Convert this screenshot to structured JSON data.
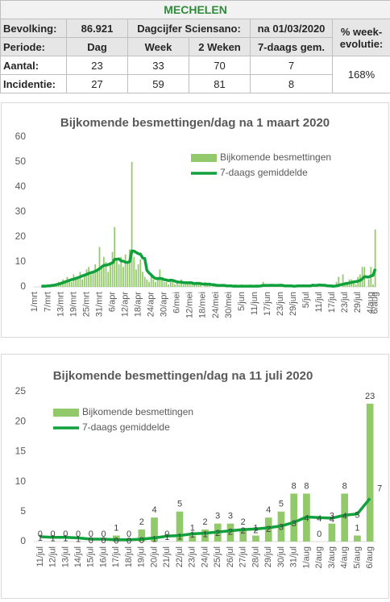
{
  "table": {
    "title": "MECHELEN",
    "rows": [
      [
        "Bevolking:",
        "86.921",
        "Dagcijfer Sciensano:",
        "na 01/03/2020",
        "% week-evolutie:"
      ],
      [
        "Periode:",
        "Dag",
        "Week",
        "2 Weken",
        "7-daags gem."
      ],
      [
        "Aantal:",
        "23",
        "33",
        "70",
        "7",
        "168%"
      ],
      [
        "Incidentie:",
        "27",
        "59",
        "81",
        "8"
      ]
    ]
  },
  "chart_data": [
    {
      "type": "bar",
      "title": "Bijkomende besmettingen/dag  na 1 maart 2020",
      "categories": [
        "1/mrt",
        null,
        null,
        null,
        null,
        null,
        "7/mrt",
        null,
        null,
        null,
        null,
        null,
        "13/mrt",
        null,
        null,
        null,
        null,
        null,
        "19/mrt",
        null,
        null,
        null,
        null,
        null,
        "25/mrt",
        null,
        null,
        null,
        null,
        null,
        "31/mrt",
        null,
        null,
        null,
        null,
        null,
        "6/apr",
        null,
        null,
        null,
        null,
        null,
        "12/apr",
        null,
        null,
        null,
        null,
        null,
        "18/apr",
        null,
        null,
        null,
        null,
        null,
        "24/apr",
        null,
        null,
        null,
        null,
        null,
        "30/apr",
        null,
        null,
        null,
        null,
        null,
        "6/mei",
        null,
        null,
        null,
        null,
        null,
        "12/mei",
        null,
        null,
        null,
        null,
        null,
        "18/mei",
        null,
        null,
        null,
        null,
        null,
        "24/mei",
        null,
        null,
        null,
        null,
        null,
        "30/mei",
        null,
        null,
        null,
        null,
        null,
        "5/jun",
        null,
        null,
        null,
        null,
        null,
        "11/jun",
        null,
        null,
        null,
        null,
        null,
        "17/jun",
        null,
        null,
        null,
        null,
        null,
        "23/jun",
        null,
        null,
        null,
        null,
        null,
        "29/jun",
        null,
        null,
        null,
        null,
        null,
        "5/jul",
        null,
        null,
        null,
        null,
        null,
        "11/jul",
        null,
        null,
        null,
        null,
        null,
        "17/jul",
        null,
        null,
        null,
        null,
        null,
        "23/jul",
        null,
        null,
        null,
        null,
        null,
        "29/jul",
        null,
        null,
        null,
        null,
        null,
        "4/aug",
        null,
        "6/aug"
      ],
      "series": [
        {
          "name": "Bijkomende besmettingen",
          "type": "bar",
          "color": "#92c96a",
          "values": [
            0,
            0,
            0,
            0,
            1,
            0,
            0,
            1,
            0,
            1,
            1,
            2,
            1,
            3,
            2,
            4,
            3,
            2,
            5,
            3,
            4,
            6,
            3,
            5,
            7,
            8,
            5,
            6,
            9,
            7,
            16,
            8,
            12,
            10,
            6,
            9,
            14,
            24,
            11,
            9,
            12,
            8,
            13,
            10,
            15,
            50,
            12,
            7,
            9,
            11,
            6,
            4,
            3,
            2,
            5,
            3,
            2,
            4,
            7,
            3,
            2,
            2,
            1,
            3,
            2,
            1,
            2,
            1,
            3,
            1,
            2,
            1,
            2,
            1,
            1,
            2,
            1,
            1,
            0,
            2,
            1,
            1,
            0,
            1,
            1,
            0,
            1,
            0,
            1,
            0,
            0,
            1,
            0,
            1,
            0,
            0,
            1,
            0,
            0,
            0,
            1,
            0,
            0,
            1,
            0,
            0,
            2,
            1,
            0,
            0,
            1,
            0,
            0,
            0,
            1,
            0,
            0,
            1,
            0,
            1,
            0,
            0,
            1,
            0,
            0,
            1,
            0,
            1,
            0,
            1,
            0,
            0,
            0,
            0,
            0,
            0,
            0,
            0,
            1,
            0,
            2,
            4,
            0,
            5,
            1,
            2,
            3,
            3,
            2,
            1,
            4,
            5,
            8,
            8,
            0,
            3,
            8,
            1,
            23
          ]
        },
        {
          "name": "7-daags gemiddelde",
          "type": "line",
          "color": "#10a03c",
          "values": [
            null,
            null,
            null,
            0.2,
            0.3,
            0.3,
            0.4,
            0.4,
            0.6,
            0.7,
            0.9,
            1.1,
            1.4,
            1.7,
            2.0,
            2.3,
            2.6,
            2.9,
            3.1,
            3.4,
            3.7,
            4.0,
            4.4,
            4.7,
            5.0,
            5.4,
            5.7,
            5.9,
            6.3,
            6.7,
            7.3,
            8.0,
            8.6,
            8.7,
            8.9,
            9.3,
            9.6,
            11,
            11.1,
            11.2,
            10.4,
            10.3,
            9.9,
            9.8,
            10.1,
            14.4,
            14.3,
            13.8,
            13.3,
            13.1,
            11.6,
            11.4,
            6.6,
            5.6,
            4.8,
            3.9,
            3.4,
            3.3,
            3.4,
            3.3,
            2.9,
            2.8,
            2.5,
            2.7,
            2.6,
            2.3,
            2,
            1.9,
            1.9,
            1.7,
            1.7,
            1.6,
            1.7,
            1.6,
            1.3,
            1.4,
            1.4,
            1.3,
            1.1,
            1.1,
            1.1,
            1.1,
            0.9,
            0.9,
            0.7,
            0.6,
            0.6,
            0.6,
            0.6,
            0.4,
            0.4,
            0.4,
            0.3,
            0.3,
            0.3,
            0.3,
            0.3,
            0.3,
            0.3,
            0.3,
            0.3,
            0.3,
            0.3,
            0.3,
            0.3,
            0.4,
            0.6,
            0.6,
            0.6,
            0.6,
            0.7,
            0.6,
            0.6,
            0.6,
            0.7,
            0.6,
            0.4,
            0.4,
            0.4,
            0.4,
            0.3,
            0.3,
            0.4,
            0.4,
            0.4,
            0.4,
            0.4,
            0.4,
            0.4,
            0.7,
            0.6,
            0.6,
            0.8,
            0.7,
            0.7,
            0.6,
            0.4,
            0.4,
            0.3,
            0.3,
            0.4,
            0.6,
            0.9,
            1.0,
            1.3,
            1.4,
            1.6,
            1.8,
            2.0,
            2.1,
            2.3,
            2.6,
            3.2,
            4.1,
            4.0,
            3.9,
            4.4,
            4.6,
            7.2
          ]
        }
      ],
      "ylim": [
        0,
        60
      ],
      "yticks": [
        0,
        10,
        20,
        30,
        40,
        50,
        60
      ],
      "grid": false,
      "legend": "upper right",
      "data_labels": false
    },
    {
      "type": "bar",
      "title": "Bijkomende besmettingen/dag  na 11 juli 2020",
      "categories": [
        "11/jul",
        "12/jul",
        "13/jul",
        "14/jul",
        "15/jul",
        "16/jul",
        "17/jul",
        "18/jul",
        "19/jul",
        "20/jul",
        "21/jul",
        "22/jul",
        "23/jul",
        "24/jul",
        "25/jul",
        "26/jul",
        "27/jul",
        "28/jul",
        "29/jul",
        "30/jul",
        "31/jul",
        "1/aug",
        "2/aug",
        "3/aug",
        "4/aug",
        "5/aug",
        "6/aug"
      ],
      "series": [
        {
          "name": "Bijkomende besmettingen",
          "type": "bar",
          "color": "#92c96a",
          "values": [
            0,
            0,
            0,
            0,
            0,
            0,
            1,
            0,
            2,
            4,
            0,
            5,
            1,
            2,
            3,
            3,
            2,
            1,
            4,
            5,
            8,
            8,
            0,
            3,
            8,
            1,
            23
          ]
        },
        {
          "name": "7-daags gemiddelde",
          "type": "line",
          "color": "#10a03c",
          "values": [
            0.8,
            0.7,
            0.7,
            0.6,
            0.4,
            0.4,
            0.3,
            0.3,
            0.4,
            0.6,
            0.9,
            1.0,
            1.3,
            1.4,
            1.6,
            1.8,
            2.0,
            2.1,
            2.3,
            2.6,
            3.2,
            4.1,
            4.0,
            3.9,
            4.4,
            4.6,
            7.2
          ],
          "value_labels": [
            "1",
            "1",
            "1",
            "1",
            "0",
            "0",
            "0",
            "0",
            "0",
            "1",
            "1",
            "1",
            "1",
            "1",
            "2",
            "2",
            "2",
            "2",
            "2",
            "3",
            "3",
            "4",
            "4",
            "4",
            "4",
            "5",
            "7"
          ]
        }
      ],
      "ylim": [
        0,
        25
      ],
      "yticks": [
        0,
        5,
        10,
        15,
        20,
        25
      ],
      "grid": false,
      "legend": "upper left",
      "data_labels": true
    }
  ]
}
